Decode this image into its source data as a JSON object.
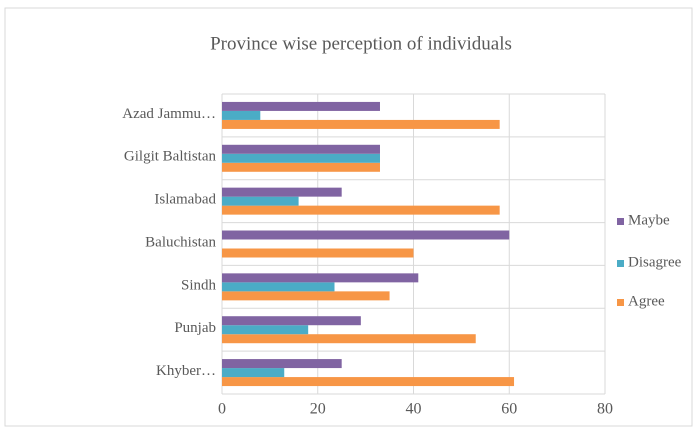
{
  "chart_data": {
    "type": "bar",
    "orientation": "horizontal",
    "title": "Province wise perception of individuals",
    "categories": [
      "Khyber…",
      "Punjab",
      "Sindh",
      "Baluchistan",
      "Islamabad",
      "Gilgit Baltistan",
      "Azad Jammu…"
    ],
    "series": [
      {
        "name": "Agree",
        "color": "#f79646",
        "values": [
          61,
          53,
          35,
          40,
          58,
          33,
          58
        ]
      },
      {
        "name": "Disagree",
        "color": "#4bacc6",
        "values": [
          13,
          18,
          23.5,
          0,
          16,
          33,
          8
        ]
      },
      {
        "name": "Maybe",
        "color": "#8064a2",
        "values": [
          25,
          29,
          41,
          60,
          25,
          33,
          33
        ]
      }
    ],
    "xlim": [
      0,
      80
    ],
    "xticks": [
      0,
      20,
      40,
      60,
      80
    ],
    "grid": true,
    "legend": "right"
  }
}
